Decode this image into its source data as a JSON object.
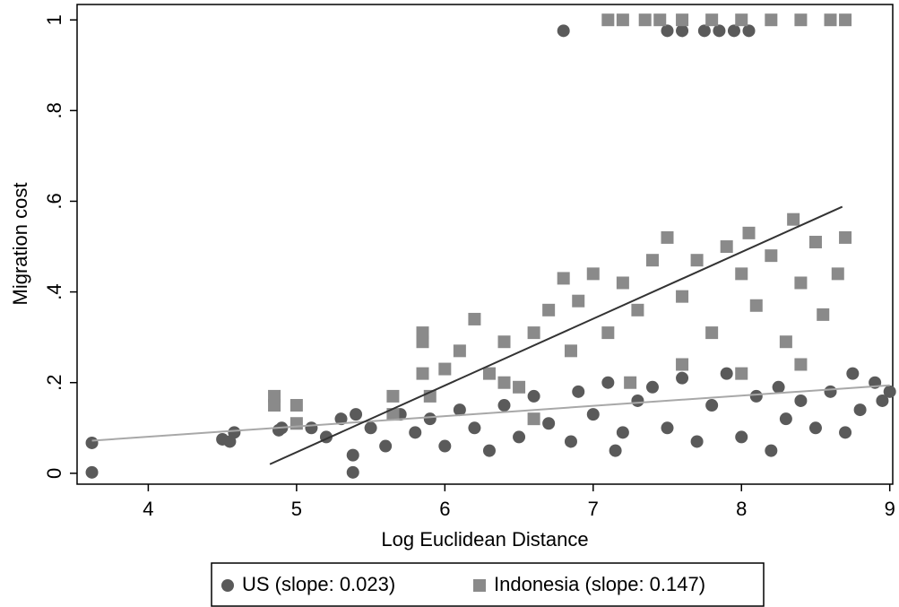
{
  "chart_data": {
    "type": "scatter",
    "x_label": "Log Euclidean Distance",
    "y_label": "Migration cost",
    "xlim": [
      3.52,
      9.02
    ],
    "ylim": [
      -0.024,
      1.034
    ],
    "xticks": [
      4,
      5,
      6,
      7,
      8,
      9
    ],
    "yticks": [
      0,
      {
        "value": 0.2,
        "label": ".2"
      },
      {
        "value": 0.4,
        "label": ".4"
      },
      {
        "value": 0.6,
        "label": ".6"
      },
      {
        "value": 0.8,
        "label": ".8"
      },
      1
    ],
    "legend": "bottom",
    "series": [
      {
        "name": "US (slope: 0.023)",
        "color": "#5a5a5a",
        "marker": "circle",
        "x": [
          3.62,
          3.62,
          4.5,
          4.55,
          4.58,
          4.88,
          4.9,
          5.1,
          5.2,
          5.3,
          5.38,
          5.38,
          5.4,
          5.5,
          5.6,
          5.7,
          5.8,
          5.9,
          6.0,
          6.1,
          6.2,
          6.3,
          6.4,
          6.5,
          6.6,
          6.7,
          6.8,
          6.85,
          6.9,
          7.0,
          7.1,
          7.15,
          7.2,
          7.3,
          7.4,
          7.5,
          7.5,
          7.6,
          7.6,
          7.7,
          7.75,
          7.8,
          7.85,
          7.9,
          7.95,
          8.0,
          8.05,
          8.1,
          8.2,
          8.25,
          8.3,
          8.4,
          8.5,
          8.6,
          8.7,
          8.75,
          8.8,
          8.9,
          8.95,
          9.0
        ],
        "y": [
          0.067,
          0.002,
          0.075,
          0.07,
          0.09,
          0.095,
          0.1,
          0.1,
          0.08,
          0.12,
          0.04,
          0.002,
          0.13,
          0.1,
          0.06,
          0.13,
          0.09,
          0.12,
          0.06,
          0.14,
          0.1,
          0.05,
          0.15,
          0.08,
          0.17,
          0.11,
          0.976,
          0.07,
          0.18,
          0.13,
          0.2,
          0.05,
          0.09,
          0.16,
          0.19,
          0.976,
          0.1,
          0.976,
          0.21,
          0.07,
          0.976,
          0.15,
          0.976,
          0.22,
          0.976,
          0.08,
          0.976,
          0.17,
          0.05,
          0.19,
          0.12,
          0.16,
          0.1,
          0.18,
          0.09,
          0.22,
          0.14,
          0.2,
          0.16,
          0.18
        ],
        "fit": {
          "x": [
            3.62,
            9.0
          ],
          "y": [
            0.072,
            0.194
          ],
          "color": "#a8a8a8"
        }
      },
      {
        "name": "Indonesia (slope: 0.147)",
        "color": "#8a8a8a",
        "marker": "square",
        "x": [
          4.85,
          4.85,
          5.0,
          5.0,
          5.65,
          5.65,
          5.85,
          5.85,
          5.85,
          5.9,
          6.0,
          6.1,
          6.2,
          6.3,
          6.4,
          6.5,
          6.6,
          6.7,
          6.8,
          6.85,
          6.9,
          7.0,
          7.1,
          7.1,
          7.2,
          7.2,
          7.3,
          7.35,
          7.4,
          7.45,
          7.5,
          7.6,
          7.6,
          7.7,
          7.8,
          7.8,
          7.9,
          8.0,
          8.0,
          8.05,
          8.1,
          8.2,
          8.2,
          8.3,
          8.35,
          8.4,
          8.4,
          8.5,
          8.55,
          8.6,
          8.65,
          8.7,
          8.7,
          7.25,
          7.6,
          8.0,
          8.4,
          6.6,
          6.4
        ],
        "y": [
          0.17,
          0.15,
          0.15,
          0.11,
          0.17,
          0.13,
          0.31,
          0.29,
          0.22,
          0.17,
          0.23,
          0.27,
          0.34,
          0.22,
          0.29,
          0.19,
          0.31,
          0.36,
          0.43,
          0.27,
          0.38,
          0.44,
          1.0,
          0.31,
          1.0,
          0.42,
          0.36,
          1.0,
          0.47,
          1.0,
          0.52,
          1.0,
          0.39,
          0.47,
          1.0,
          0.31,
          0.5,
          1.0,
          0.44,
          0.53,
          0.37,
          1.0,
          0.48,
          0.29,
          0.56,
          1.0,
          0.42,
          0.51,
          0.35,
          1.0,
          0.44,
          1.0,
          0.52,
          0.2,
          0.24,
          0.22,
          0.24,
          0.12,
          0.2
        ],
        "fit": {
          "x": [
            4.82,
            8.68
          ],
          "y": [
            0.02,
            0.588
          ],
          "color": "#333333"
        }
      }
    ]
  }
}
